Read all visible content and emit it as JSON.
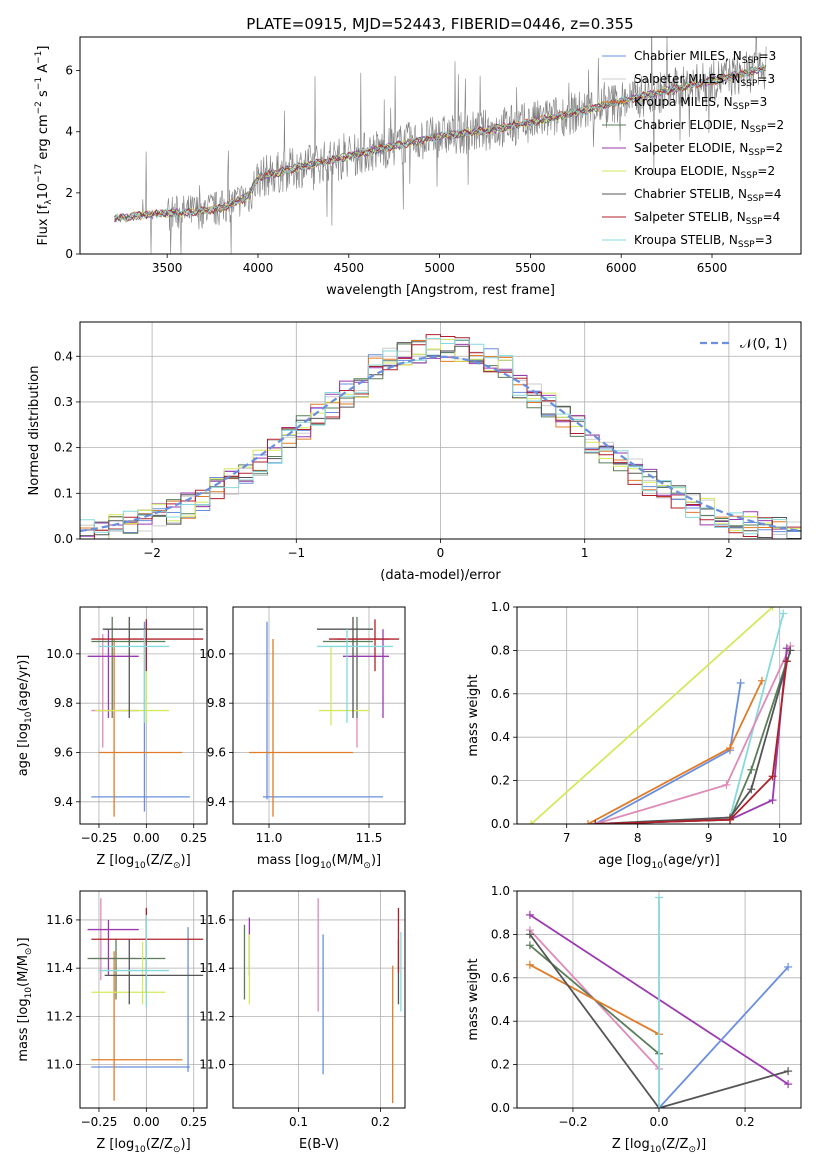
{
  "title": "PLATE=0915, MJD=52443, FIBERID=0446, z=0.355",
  "colors": {
    "chabrier_miles": "#6a8fde",
    "salpeter_miles": "#cccccc",
    "kroupa_miles": "#e07b28",
    "chabrier_elodie": "#5a7d5a",
    "salpeter_elodie": "#9b3ab0",
    "kroupa_elodie": "#d6e85c",
    "chabrier_stelib": "#555555",
    "salpeter_stelib": "#b0202a",
    "kroupa_stelib": "#86d9dc",
    "pink": "#e08ab8",
    "spectrum": "#7f7f7f",
    "normal_curve": "#6a8fde"
  },
  "chart_data": [
    {
      "id": "spectrum",
      "type": "line",
      "xlabel": "wavelength [Angstrom, rest frame]",
      "ylabel_main": "Flux [f",
      "ylabel_sub": "λ",
      "ylabel_rest": "10",
      "ylabel_exp": "−17",
      "ylabel_units": " erg cm",
      "ylabel_units_exp": "−2",
      "ylabel_units2": " s",
      "ylabel_units2_exp": "−1",
      "ylabel_units3": " A",
      "ylabel_units3_exp": "−1",
      "ylabel_end": "]",
      "xlim": [
        3020,
        6990
      ],
      "ylim": [
        0,
        7.1
      ],
      "xticks": [
        "3500",
        "4000",
        "4500",
        "5000",
        "5500",
        "6000",
        "6500"
      ],
      "xtick_values": [
        3500,
        4000,
        4500,
        5000,
        5500,
        6000,
        6500
      ],
      "yticks": [
        "0",
        "2",
        "4",
        "6"
      ],
      "ytick_values": [
        0,
        2,
        4,
        6
      ],
      "continuum": [
        [
          3210,
          1.15
        ],
        [
          3400,
          1.3
        ],
        [
          3600,
          1.35
        ],
        [
          3800,
          1.5
        ],
        [
          3950,
          1.9
        ],
        [
          4000,
          2.5
        ],
        [
          4200,
          2.8
        ],
        [
          4500,
          3.2
        ],
        [
          4800,
          3.6
        ],
        [
          5000,
          3.85
        ],
        [
          5200,
          4.0
        ],
        [
          5500,
          4.3
        ],
        [
          5800,
          4.7
        ],
        [
          6000,
          5.0
        ],
        [
          6300,
          5.4
        ],
        [
          6600,
          5.8
        ],
        [
          6800,
          6.1
        ]
      ],
      "legend": [
        {
          "name": "Chabrier MILES, N",
          "sub": "SSP",
          "val": "=3",
          "color": "#6a8fde"
        },
        {
          "name": "Salpeter MILES, N",
          "sub": "SSP",
          "val": "=3",
          "color": "#cccccc"
        },
        {
          "name": "Kroupa MILES, N",
          "sub": "SSP",
          "val": "=3",
          "color": "#e07b28"
        },
        {
          "name": "Chabrier ELODIE, N",
          "sub": "SSP",
          "val": "=2",
          "color": "#5a7d5a"
        },
        {
          "name": "Salpeter ELODIE, N",
          "sub": "SSP",
          "val": "=2",
          "color": "#9b3ab0"
        },
        {
          "name": "Kroupa ELODIE, N",
          "sub": "SSP",
          "val": "=2",
          "color": "#d6e85c"
        },
        {
          "name": "Chabrier STELIB, N",
          "sub": "SSP",
          "val": "=4",
          "color": "#555555"
        },
        {
          "name": "Salpeter STELIB, N",
          "sub": "SSP",
          "val": "=4",
          "color": "#b0202a"
        },
        {
          "name": "Kroupa STELIB, N",
          "sub": "SSP",
          "val": "=3",
          "color": "#86d9dc"
        }
      ],
      "legend_position": "upper-right"
    },
    {
      "id": "residuals",
      "type": "histogram",
      "xlabel": "(data-model)/error",
      "ylabel": "Normed distribution",
      "xlim": [
        -2.5,
        2.5
      ],
      "ylim": [
        0,
        0.475
      ],
      "xticks": [
        "−2",
        "−1",
        "0",
        "1",
        "2"
      ],
      "xtick_values": [
        -2,
        -1,
        0,
        1,
        2
      ],
      "yticks": [
        "0.0",
        "0.1",
        "0.2",
        "0.3",
        "0.4"
      ],
      "ytick_values": [
        0,
        0.1,
        0.2,
        0.3,
        0.4
      ],
      "grid": true,
      "legend": [
        {
          "name": "𝒩(0, 1)",
          "style": "dashed",
          "color": "#6a8fde"
        }
      ],
      "legend_position": "upper-right",
      "bin_width": 0.1
    },
    {
      "id": "age_vs_Z",
      "type": "errorbar",
      "xlabel": "Z [log",
      "xlabel_sub": "10",
      "xlabel_rest": "(Z/Z",
      "xlabel_sun": "⊙",
      "xlabel_end": ")]",
      "ylabel": "age  [log",
      "ylabel_sub": "10",
      "ylabel_rest": "(age/yr)]",
      "xlim": [
        -0.35,
        0.32
      ],
      "ylim": [
        9.31,
        10.19
      ],
      "xticks": [
        "−0.25",
        "0.00",
        "0.25"
      ],
      "xtick_values": [
        -0.25,
        0,
        0.25
      ],
      "yticks": [
        "9.4",
        "9.6",
        "9.8",
        "10.0"
      ],
      "ytick_values": [
        9.4,
        9.6,
        9.8,
        10.0
      ],
      "points": [
        {
          "x": -0.01,
          "xl": -0.29,
          "xh": 0.23,
          "y": 9.42,
          "yl": 9.36,
          "yh": 10.13,
          "color": "#6a8fde"
        },
        {
          "x": -0.17,
          "xl": -0.25,
          "xh": 0.19,
          "y": 9.6,
          "yl": 9.34,
          "yh": 10.06,
          "color": "#e07b28"
        },
        {
          "x": -0.23,
          "xl": -0.29,
          "xh": -0.04,
          "y": 9.77,
          "yl": 9.62,
          "yh": 10.08,
          "color": "#e08ab8"
        },
        {
          "x": -0.18,
          "xl": -0.29,
          "xh": 0.1,
          "y": 10.05,
          "yl": 9.74,
          "yh": 10.15,
          "color": "#5a7d5a"
        },
        {
          "x": -0.2,
          "xl": -0.31,
          "xh": -0.04,
          "y": 9.99,
          "yl": 9.74,
          "yh": 10.1,
          "color": "#9b3ab0"
        },
        {
          "x": 0.0,
          "xl": -0.27,
          "xh": 0.12,
          "y": 9.77,
          "yl": 9.72,
          "yh": 10.12,
          "color": "#d6e85c"
        },
        {
          "x": -0.09,
          "xl": -0.23,
          "xh": 0.3,
          "y": 10.1,
          "yl": 9.74,
          "yh": 10.15,
          "color": "#555555"
        },
        {
          "x": 0.0,
          "xl": -0.29,
          "xh": 0.3,
          "y": 10.06,
          "yl": 9.93,
          "yh": 10.14,
          "color": "#b0202a"
        },
        {
          "x": -0.01,
          "xl": -0.25,
          "xh": 0.12,
          "y": 10.03,
          "yl": 9.72,
          "yh": 10.1,
          "color": "#86d9dc"
        }
      ]
    },
    {
      "id": "age_vs_mass",
      "type": "errorbar",
      "xlabel": "mass [log",
      "xlabel_sub": "10",
      "xlabel_rest": "(M/M",
      "xlabel_sun": "⊙",
      "xlabel_end": ")]",
      "xlim": [
        10.82,
        11.68
      ],
      "ylim": [
        9.31,
        10.19
      ],
      "xticks": [
        "11.0",
        "11.5"
      ],
      "xtick_values": [
        11.0,
        11.5
      ],
      "yticks": [
        "9.4",
        "9.6",
        "9.8",
        "10.0"
      ],
      "ytick_values": [
        9.4,
        9.6,
        9.8,
        10.0
      ],
      "points": [
        {
          "x": 10.99,
          "xl": 10.97,
          "xh": 11.57,
          "y": 9.42,
          "yl": 9.41,
          "yh": 10.13,
          "color": "#6a8fde"
        },
        {
          "x": 11.02,
          "xl": 10.9,
          "xh": 11.42,
          "y": 9.6,
          "yl": 9.34,
          "yh": 10.06,
          "color": "#e07b28"
        },
        {
          "x": 11.44,
          "xl": 11.34,
          "xh": 11.6,
          "y": 10.06,
          "yl": 9.62,
          "yh": 10.1,
          "color": "#e08ab8"
        },
        {
          "x": 11.44,
          "xl": 11.27,
          "xh": 11.52,
          "y": 10.05,
          "yl": 9.74,
          "yh": 10.15,
          "color": "#5a7d5a"
        },
        {
          "x": 11.57,
          "xl": 11.37,
          "xh": 11.6,
          "y": 9.99,
          "yl": 9.74,
          "yh": 10.1,
          "color": "#9b3ab0"
        },
        {
          "x": 11.31,
          "xl": 11.25,
          "xh": 11.5,
          "y": 9.77,
          "yl": 9.71,
          "yh": 10.03,
          "color": "#d6e85c"
        },
        {
          "x": 11.42,
          "xl": 11.24,
          "xh": 11.52,
          "y": 10.1,
          "yl": 9.74,
          "yh": 10.15,
          "color": "#555555"
        },
        {
          "x": 11.53,
          "xl": 11.3,
          "xh": 11.65,
          "y": 10.06,
          "yl": 9.93,
          "yh": 10.14,
          "color": "#b0202a"
        },
        {
          "x": 11.39,
          "xl": 11.24,
          "xh": 11.62,
          "y": 10.03,
          "yl": 9.72,
          "yh": 10.1,
          "color": "#86d9dc"
        }
      ]
    },
    {
      "id": "cum_age",
      "type": "line",
      "xlabel": "age  [log",
      "xlabel_sub": "10",
      "xlabel_rest": "(age/yr)]",
      "ylabel": "mass weight",
      "xlim": [
        6.3,
        10.3
      ],
      "ylim": [
        0,
        1.0
      ],
      "xticks": [
        "7",
        "8",
        "9",
        "10"
      ],
      "xtick_values": [
        7,
        8,
        9,
        10
      ],
      "yticks": [
        "0.0",
        "0.2",
        "0.4",
        "0.6",
        "0.8",
        "1.0"
      ],
      "ytick_values": [
        0,
        0.2,
        0.4,
        0.6,
        0.8,
        1.0
      ],
      "grid": true,
      "series": [
        {
          "color": "#6a8fde",
          "x": [
            7.4,
            9.3,
            9.45
          ],
          "y": [
            0,
            0.34,
            0.65
          ]
        },
        {
          "color": "#e07b28",
          "x": [
            7.3,
            9.3,
            9.75
          ],
          "y": [
            0,
            0.35,
            0.66
          ]
        },
        {
          "color": "#d6e85c",
          "x": [
            6.5,
            9.9
          ],
          "y": [
            0,
            1.0
          ]
        },
        {
          "color": "#86d9dc",
          "x": [
            7.4,
            9.3,
            10.05
          ],
          "y": [
            0,
            0.03,
            0.97
          ]
        },
        {
          "color": "#e08ab8",
          "x": [
            7.4,
            9.25,
            10.15
          ],
          "y": [
            0,
            0.18,
            0.82
          ]
        },
        {
          "color": "#9b3ab0",
          "x": [
            7.4,
            9.3,
            9.9,
            10.1
          ],
          "y": [
            0,
            0.02,
            0.11,
            0.81
          ]
        },
        {
          "color": "#5a7d5a",
          "x": [
            7.4,
            9.3,
            9.6,
            10.1
          ],
          "y": [
            0,
            0.02,
            0.25,
            0.75
          ]
        },
        {
          "color": "#555555",
          "x": [
            7.4,
            9.3,
            9.6,
            10.15
          ],
          "y": [
            0,
            0.03,
            0.16,
            0.8
          ]
        },
        {
          "color": "#b0202a",
          "x": [
            7.4,
            9.3,
            9.9,
            10.1
          ],
          "y": [
            0,
            0.02,
            0.22,
            0.75
          ]
        }
      ]
    },
    {
      "id": "mass_vs_Z",
      "type": "errorbar",
      "xlabel": "Z [log",
      "xlabel_sub": "10",
      "xlabel_rest": "(Z/Z",
      "xlabel_sun": "⊙",
      "xlabel_end": ")]",
      "ylabel": "mass [log",
      "ylabel_sub": "10",
      "ylabel_rest": "(M/M",
      "ylabel_sun": "⊙",
      "ylabel_end": ")]",
      "xlim": [
        -0.35,
        0.32
      ],
      "ylim": [
        10.82,
        11.72
      ],
      "xticks": [
        "−0.25",
        "0.00",
        "0.25"
      ],
      "xtick_values": [
        -0.25,
        0,
        0.25
      ],
      "yticks": [
        "11.0",
        "11.2",
        "11.4",
        "11.6"
      ],
      "ytick_values": [
        11.0,
        11.2,
        11.4,
        11.6
      ],
      "points": [
        {
          "x": 0.22,
          "xl": -0.29,
          "xh": 0.23,
          "y": 10.99,
          "yl": 10.97,
          "yh": 11.57,
          "color": "#6a8fde"
        },
        {
          "x": -0.17,
          "xl": -0.29,
          "xh": 0.19,
          "y": 11.02,
          "yl": 10.85,
          "yh": 11.47,
          "color": "#e07b28"
        },
        {
          "x": -0.24,
          "xl": -0.29,
          "xh": -0.04,
          "y": 11.44,
          "yl": 11.35,
          "yh": 11.69,
          "color": "#e08ab8"
        },
        {
          "x": -0.16,
          "xl": -0.31,
          "xh": 0.1,
          "y": 11.44,
          "yl": 11.27,
          "yh": 11.52,
          "color": "#5a7d5a"
        },
        {
          "x": -0.2,
          "xl": -0.31,
          "xh": -0.04,
          "y": 11.56,
          "yl": 11.37,
          "yh": 11.6,
          "color": "#9b3ab0"
        },
        {
          "x": -0.02,
          "xl": -0.29,
          "xh": 0.1,
          "y": 11.3,
          "yl": 11.25,
          "yh": 11.51,
          "color": "#d6e85c"
        },
        {
          "x": -0.09,
          "xl": -0.22,
          "xh": 0.3,
          "y": 11.37,
          "yl": 11.25,
          "yh": 11.52,
          "color": "#555555"
        },
        {
          "x": 0.0,
          "xl": -0.29,
          "xh": 0.3,
          "y": 11.52,
          "yl": 11.3,
          "yh": 11.65,
          "color": "#b0202a"
        },
        {
          "x": 0.0,
          "xl": -0.25,
          "xh": 0.12,
          "y": 11.39,
          "yl": 11.24,
          "yh": 11.62,
          "color": "#86d9dc"
        }
      ]
    },
    {
      "id": "mass_vs_ebv",
      "type": "errorbar",
      "xlabel": "E(B-V)",
      "xlim": [
        0.02,
        0.23
      ],
      "ylim": [
        10.82,
        11.72
      ],
      "xticks": [
        "0.1",
        "0.2"
      ],
      "xtick_values": [
        0.1,
        0.2
      ],
      "yticks": [
        "11.0",
        "11.2",
        "11.4",
        "11.6"
      ],
      "ytick_values": [
        11.0,
        11.2,
        11.4,
        11.6
      ],
      "points": [
        {
          "x": 0.13,
          "y": 11.25,
          "yl": 10.96,
          "yh": 11.54,
          "color": "#6a8fde"
        },
        {
          "x": 0.215,
          "y": 11.1,
          "yl": 10.84,
          "yh": 11.41,
          "color": "#e07b28"
        },
        {
          "x": 0.124,
          "y": 11.45,
          "yl": 11.22,
          "yh": 11.69,
          "color": "#e08ab8"
        },
        {
          "x": 0.034,
          "y": 11.44,
          "yl": 11.27,
          "yh": 11.58,
          "color": "#5a7d5a"
        },
        {
          "x": 0.04,
          "y": 11.5,
          "yl": 11.37,
          "yh": 11.61,
          "color": "#9b3ab0"
        },
        {
          "x": 0.04,
          "y": 11.4,
          "yl": 11.25,
          "yh": 11.54,
          "color": "#d6e85c"
        },
        {
          "x": 0.222,
          "y": 11.38,
          "yl": 11.25,
          "yh": 11.52,
          "color": "#555555"
        },
        {
          "x": 0.222,
          "y": 11.5,
          "yl": 11.38,
          "yh": 11.65,
          "color": "#b0202a"
        },
        {
          "x": 0.225,
          "y": 11.39,
          "yl": 11.22,
          "yh": 11.55,
          "color": "#86d9dc"
        }
      ]
    },
    {
      "id": "cum_Z",
      "type": "line",
      "xlabel": "Z [log",
      "xlabel_sub": "10",
      "xlabel_rest": "(Z/Z",
      "xlabel_sun": "⊙",
      "xlabel_end": ")]",
      "ylabel": "mass weight",
      "xlim": [
        -0.33,
        0.33
      ],
      "ylim": [
        0,
        1.0
      ],
      "xticks": [
        "−0.2",
        "0.0",
        "0.2"
      ],
      "xtick_values": [
        -0.2,
        0,
        0.2
      ],
      "yticks": [
        "0.0",
        "0.2",
        "0.4",
        "0.6",
        "0.8",
        "1.0"
      ],
      "ytick_values": [
        0,
        0.2,
        0.4,
        0.6,
        0.8,
        1.0
      ],
      "grid": true,
      "series": [
        {
          "color": "#9b3ab0",
          "x": [
            -0.3,
            0.3
          ],
          "y": [
            0.89,
            0.11
          ]
        },
        {
          "color": "#e08ab8",
          "x": [
            -0.3,
            0.0
          ],
          "y": [
            0.82,
            0.18
          ]
        },
        {
          "color": "#5a7d5a",
          "x": [
            -0.3,
            0.0
          ],
          "y": [
            0.75,
            0.25
          ]
        },
        {
          "color": "#e07b28",
          "x": [
            -0.3,
            0.0
          ],
          "y": [
            0.66,
            0.34
          ]
        },
        {
          "color": "#555555",
          "x": [
            -0.3,
            0.0,
            0.3
          ],
          "y": [
            0.8,
            0.0,
            0.17
          ]
        },
        {
          "color": "#6a8fde",
          "x": [
            0.0,
            0.3
          ],
          "y": [
            0.0,
            0.65
          ]
        },
        {
          "color": "#86d9dc",
          "x": [
            0.0,
            0.0
          ],
          "y": [
            0.0,
            0.97
          ]
        }
      ]
    }
  ]
}
